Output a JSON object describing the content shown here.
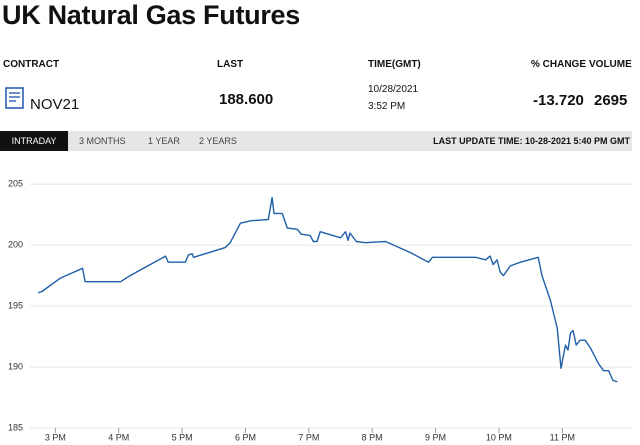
{
  "header": {
    "title": "UK Natural Gas Futures"
  },
  "quote_table": {
    "columns": [
      "CONTRACT",
      "LAST",
      "TIME(GMT)",
      "% CHANGE",
      "VOLUME"
    ],
    "row": {
      "contract": "NOV21",
      "last": "188.600",
      "date": "10/28/2021",
      "time": "3:52 PM",
      "change": "-13.720",
      "volume": "2695"
    }
  },
  "tabs": [
    "INTRADAY",
    "3 MONTHS",
    "1 YEAR",
    "2 YEARS"
  ],
  "last_update": "LAST UPDATE TIME: 10-28-2021 5:40 PM GMT",
  "chart_data": {
    "type": "line",
    "color": "#1f5fa8",
    "grid": true,
    "xlim": [
      14.6,
      24.1
    ],
    "ylim": [
      185,
      206
    ],
    "xticks": [
      {
        "value": 15,
        "label": "3 PM"
      },
      {
        "value": 16,
        "label": "4 PM"
      },
      {
        "value": 17,
        "label": "5 PM"
      },
      {
        "value": 18,
        "label": "6 PM"
      },
      {
        "value": 19,
        "label": "7 PM"
      },
      {
        "value": 20,
        "label": "8 PM"
      },
      {
        "value": 21,
        "label": "9 PM"
      },
      {
        "value": 22,
        "label": "10 PM"
      },
      {
        "value": 23,
        "label": "11 PM"
      }
    ],
    "yticks": [
      185,
      190,
      195,
      200,
      205
    ],
    "x": [
      14.73,
      14.79,
      15.08,
      15.43,
      15.47,
      16.03,
      16.18,
      16.74,
      16.78,
      17.05,
      17.1,
      17.16,
      17.18,
      17.68,
      17.76,
      17.92,
      18.08,
      18.36,
      18.42,
      18.45,
      18.58,
      18.66,
      18.82,
      18.88,
      19.02,
      19.07,
      19.13,
      19.18,
      19.5,
      19.58,
      19.62,
      19.65,
      19.75,
      19.89,
      20.21,
      20.6,
      20.89,
      20.95,
      21.63,
      21.79,
      21.86,
      21.91,
      21.97,
      22.02,
      22.07,
      22.18,
      22.34,
      22.62,
      22.68,
      22.81,
      22.92,
      22.98,
      23.05,
      23.09,
      23.13,
      23.17,
      23.22,
      23.28,
      23.36,
      23.44,
      23.49,
      23.57,
      23.65,
      23.73,
      23.8,
      23.87
    ],
    "values": [
      196.1,
      196.2,
      197.3,
      198.1,
      197.0,
      197.0,
      197.5,
      199.1,
      198.6,
      198.6,
      199.2,
      199.3,
      199.0,
      199.8,
      200.2,
      201.8,
      202.0,
      202.1,
      203.9,
      202.6,
      202.6,
      201.4,
      201.3,
      200.9,
      200.8,
      200.3,
      200.3,
      201.1,
      200.6,
      201.1,
      200.4,
      201.0,
      200.3,
      200.2,
      200.3,
      199.4,
      198.6,
      199.0,
      199.0,
      198.8,
      199.1,
      198.4,
      198.8,
      197.8,
      197.5,
      198.3,
      198.6,
      199.0,
      197.5,
      195.5,
      193.2,
      189.9,
      191.8,
      191.4,
      192.8,
      193.0,
      191.8,
      192.2,
      192.2,
      191.6,
      191.1,
      190.3,
      189.7,
      189.7,
      188.9,
      188.8
    ]
  }
}
